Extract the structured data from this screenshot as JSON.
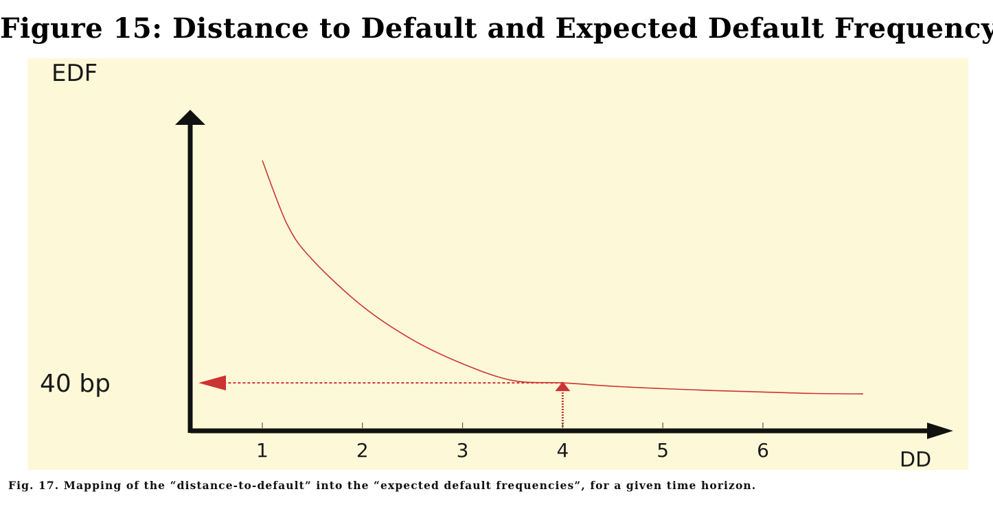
{
  "figure_title": "Figure 15: Distance to Default and Expected Default Frequency",
  "caption": "Fig.  17. Mapping of the “distance-to-default” into the “expected default frequencies”, for a given time horizon.",
  "colors": {
    "plot_background": "#fdf9d8",
    "curve": "#cc3333",
    "axis": "#111111"
  },
  "chart_data": {
    "type": "line",
    "ylabel": "EDF",
    "xlabel": "DD",
    "x_ticks": [
      "1",
      "2",
      "3",
      "4",
      "5",
      "6"
    ],
    "y_tick_label": "40 bp",
    "xlim": [
      0.28,
      7.9
    ],
    "ylim": [
      0,
      6.7
    ],
    "series": [
      {
        "x": [
          1.0,
          1.25,
          1.5,
          2.0,
          2.5,
          3.0,
          3.5,
          4.0,
          4.5,
          5.0,
          5.5,
          6.0,
          6.5,
          7.0
        ],
        "y": [
          5.64,
          4.3,
          3.57,
          2.6,
          1.9,
          1.4,
          1.05,
          1.0,
          0.93,
          0.88,
          0.84,
          0.81,
          0.78,
          0.77
        ]
      }
    ],
    "annotation": {
      "x": 4,
      "y": 1.0,
      "label": "40 bp",
      "style": "dotted arrows from x-axis up to curve, then left to y-axis"
    }
  }
}
